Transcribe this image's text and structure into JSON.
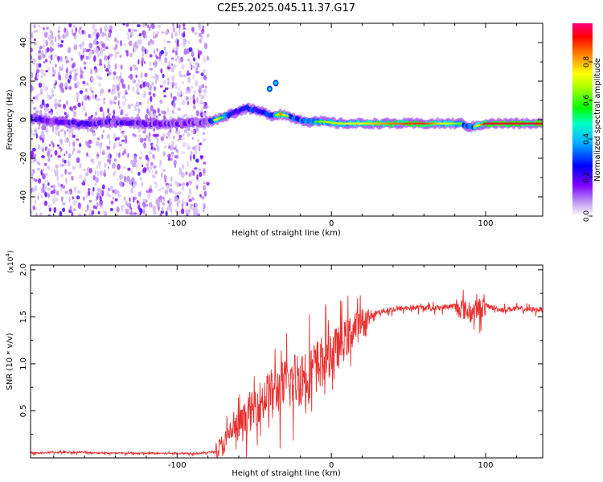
{
  "title": "C2E5.2025.045.11.37.G17",
  "chart_data": [
    {
      "type": "heatmap",
      "xlabel": "Height of straight line (km)",
      "ylabel": "Frequency (Hz)",
      "xlim": [
        -195,
        137
      ],
      "ylim": [
        -50,
        50
      ],
      "xticks": [
        -100,
        0,
        100
      ],
      "yticks": [
        -40,
        -20,
        0,
        20,
        40
      ],
      "colorbar": {
        "label": "Normalized spectral amplitude",
        "range": [
          0.0,
          1.0
        ],
        "ticks": [
          0.0,
          0.2,
          0.4,
          0.6,
          0.8
        ]
      },
      "noise_region_x": [
        -195,
        -80
      ],
      "carrier_track": [
        {
          "x": -195,
          "y": 1,
          "a": 0.3
        },
        {
          "x": -180,
          "y": -1,
          "a": 0.3
        },
        {
          "x": -160,
          "y": -2,
          "a": 0.3
        },
        {
          "x": -140,
          "y": -1,
          "a": 0.25
        },
        {
          "x": -120,
          "y": -2,
          "a": 0.25
        },
        {
          "x": -100,
          "y": -2,
          "a": 0.2
        },
        {
          "x": -80,
          "y": -1,
          "a": 0.2
        },
        {
          "x": -75,
          "y": 0,
          "a": 0.75
        },
        {
          "x": -65,
          "y": 3,
          "a": 0.4
        },
        {
          "x": -55,
          "y": 6,
          "a": 0.45
        },
        {
          "x": -45,
          "y": 4,
          "a": 0.4
        },
        {
          "x": -38,
          "y": 2,
          "a": 0.45
        },
        {
          "x": -33,
          "y": 3,
          "a": 0.85
        },
        {
          "x": -25,
          "y": 1,
          "a": 0.5
        },
        {
          "x": -15,
          "y": -1,
          "a": 0.55
        },
        {
          "x": -5,
          "y": -1,
          "a": 0.65
        },
        {
          "x": 5,
          "y": -2,
          "a": 0.7
        },
        {
          "x": 20,
          "y": -2,
          "a": 0.75
        },
        {
          "x": 40,
          "y": -2,
          "a": 0.85
        },
        {
          "x": 60,
          "y": -2,
          "a": 0.9
        },
        {
          "x": 75,
          "y": -2,
          "a": 0.7
        },
        {
          "x": 85,
          "y": -2,
          "a": 0.6
        },
        {
          "x": 90,
          "y": -4,
          "a": 0.5
        },
        {
          "x": 100,
          "y": -2,
          "a": 0.95
        },
        {
          "x": 120,
          "y": -2,
          "a": 0.95
        },
        {
          "x": 137,
          "y": -2,
          "a": 0.95
        }
      ],
      "blips": [
        {
          "x": -36,
          "y": 19
        },
        {
          "x": -40,
          "y": 16
        }
      ]
    },
    {
      "type": "line",
      "xlabel": "Height of straight line (km)",
      "ylabel": "SNR (10 * v/v)",
      "y_multiplier_label": "(x10",
      "y_multiplier_exp": "4",
      "y_multiplier_close": ")",
      "xlim": [
        -195,
        137
      ],
      "ylim": [
        0,
        2.05
      ],
      "xticks": [
        -100,
        0,
        100
      ],
      "yticks": [
        0.5,
        1.0,
        1.5,
        2.0
      ],
      "color": "#e83030",
      "series": [
        {
          "x": [
            -195,
            -180,
            -160,
            -140,
            -120,
            -100,
            -85,
            -80,
            -75,
            -72,
            -68,
            -65,
            -60,
            -55,
            -50,
            -45,
            -40,
            -35,
            -30,
            -25,
            -20,
            -15,
            -10,
            -5,
            0,
            5,
            10,
            15,
            20,
            25,
            30,
            35,
            40,
            50,
            60,
            70,
            80,
            85,
            90,
            95,
            100,
            105,
            110,
            120,
            130,
            137
          ],
          "y": [
            0.05,
            0.06,
            0.06,
            0.05,
            0.05,
            0.05,
            0.05,
            0.06,
            0.07,
            0.12,
            0.2,
            0.3,
            0.35,
            0.45,
            0.55,
            0.65,
            0.72,
            0.75,
            0.8,
            0.85,
            0.9,
            0.95,
            1.0,
            1.08,
            1.15,
            1.2,
            1.3,
            1.4,
            1.45,
            1.5,
            1.55,
            1.57,
            1.58,
            1.6,
            1.6,
            1.6,
            1.62,
            1.6,
            1.55,
            1.6,
            1.62,
            1.6,
            1.58,
            1.59,
            1.58,
            1.58
          ]
        }
      ]
    }
  ]
}
